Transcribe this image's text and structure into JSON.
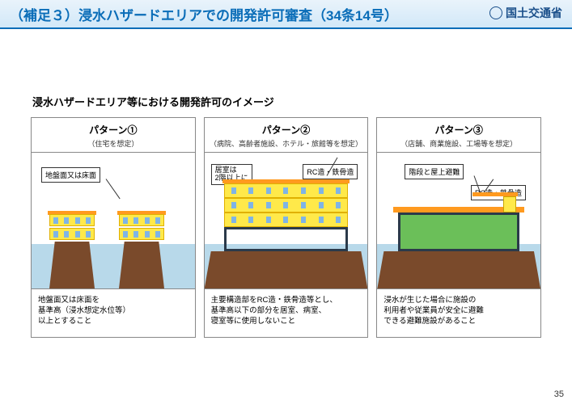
{
  "header": {
    "title": "（補足３）浸水ハザードエリアでの開発許可審査（34条14号）",
    "ministry": "国土交通省"
  },
  "subtitle": "浸水ハザードエリア等における開発許可のイメージ",
  "page_number": "35",
  "colors": {
    "title_blue": "#0a6db8",
    "water": "#b8d9ea",
    "ground": "#7a4a2b",
    "building_yellow": "#ffe94a",
    "roof_orange": "#ff9a1f",
    "frame_dark": "#2b3a4a",
    "green": "#6bbf59"
  },
  "panels": [
    {
      "title": "パターン①",
      "subtitle": "（住宅を想定）",
      "labels": [
        "地盤面又は床面"
      ],
      "description": "地盤面又は床面を\n基準高（浸水想定水位等）\n以上とすること"
    },
    {
      "title": "パターン②",
      "subtitle": "（病院、高齢者施設、ホテル・旅館等を想定）",
      "labels": [
        "居室は\n2階以上に",
        "RC造・鉄骨造"
      ],
      "description": "主要構造部をRC造・鉄骨造等とし、\n基準高以下の部分を居室、病室、\n寝室等に使用しないこと"
    },
    {
      "title": "パターン③",
      "subtitle": "（店舗、商業施設、工場等を想定）",
      "labels": [
        "階段と屋上避難",
        "RC造・鉄骨造"
      ],
      "description": "浸水が生じた場合に施設の\n利用者や従業員が安全に避難\nできる避難施設があること"
    }
  ]
}
